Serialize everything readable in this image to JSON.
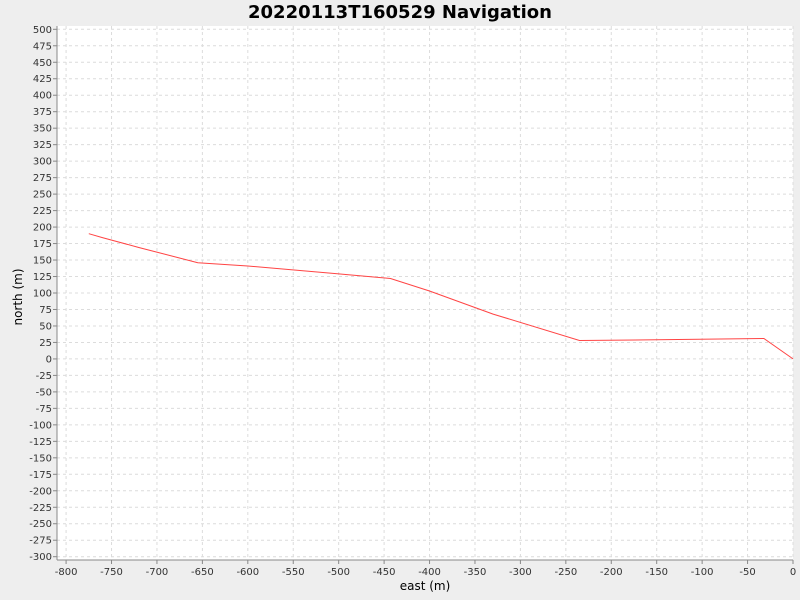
{
  "colors": {
    "background": "#eeeeee",
    "plot_background": "#ffffff",
    "grid": "#dcdcdc",
    "axis": "#888888",
    "series": "#ff4444"
  },
  "chart_data": {
    "type": "line",
    "title": "20220113T160529 Navigation",
    "xlabel": "east (m)",
    "ylabel": "north (m)",
    "xlim": [
      -810,
      0
    ],
    "ylim": [
      -305,
      505
    ],
    "x_ticks": [
      -800,
      -750,
      -700,
      -650,
      -600,
      -550,
      -500,
      -450,
      -400,
      -350,
      -300,
      -250,
      -200,
      -150,
      -100,
      -50,
      0
    ],
    "y_ticks": [
      500,
      475,
      450,
      425,
      400,
      375,
      350,
      325,
      300,
      275,
      250,
      225,
      200,
      175,
      150,
      125,
      100,
      75,
      50,
      25,
      0,
      -25,
      -50,
      -75,
      -100,
      -125,
      -150,
      -175,
      -200,
      -225,
      -250,
      -275,
      -300
    ],
    "grid": true,
    "legend": "none",
    "series": [
      {
        "x": [
          -775,
          -760,
          -720,
          -655,
          -600,
          -500,
          -443,
          -400,
          -330,
          -235,
          -150,
          -32,
          0
        ],
        "y": [
          190,
          184,
          169,
          146,
          141,
          129,
          122,
          103,
          68,
          28,
          29,
          31,
          0
        ]
      }
    ]
  }
}
